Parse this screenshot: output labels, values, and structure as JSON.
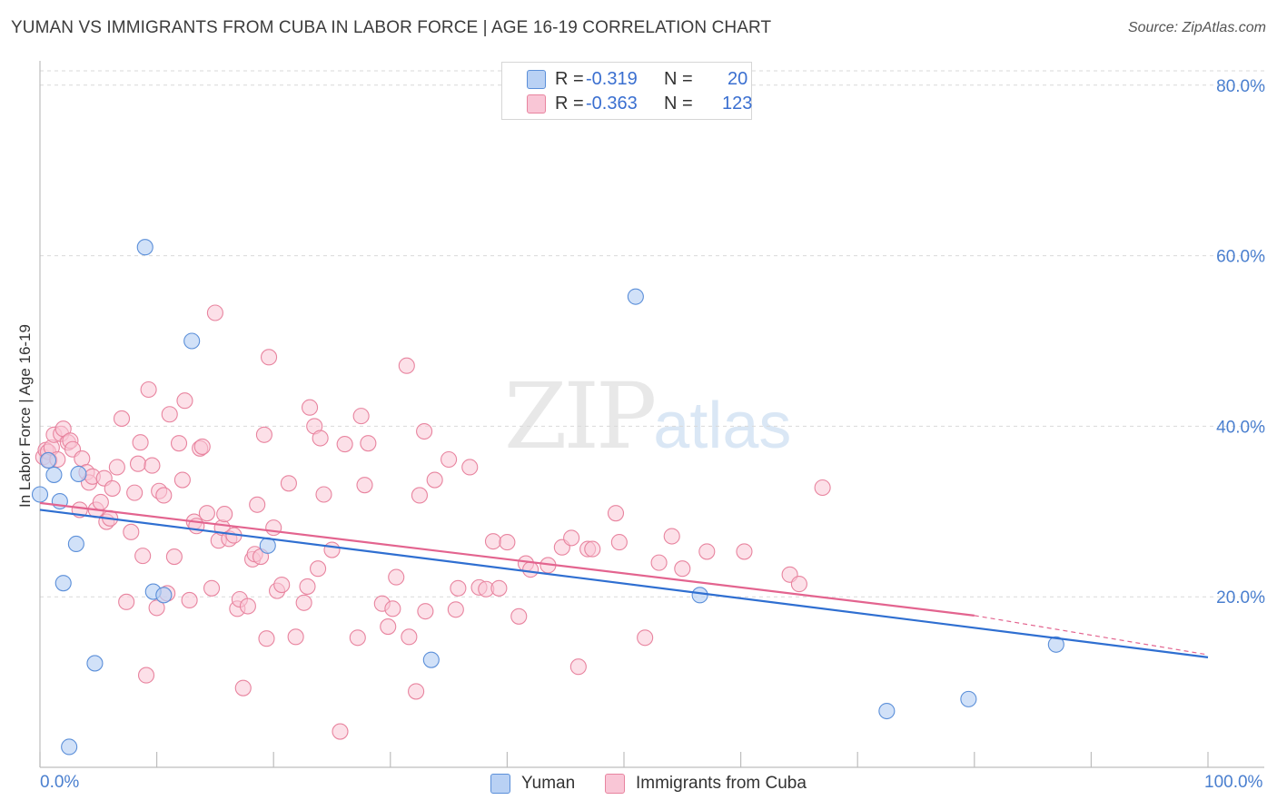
{
  "header": {
    "title": "YUMAN VS IMMIGRANTS FROM CUBA IN LABOR FORCE | AGE 16-19 CORRELATION CHART",
    "source": "Source: ZipAtlas.com"
  },
  "watermark": {
    "zip": "ZIP",
    "atlas": "atlas"
  },
  "colors": {
    "yuman_fill": "#b9d1f4",
    "yuman_stroke": "#5b8fd9",
    "yuman_line": "#2f6fd1",
    "cuba_fill": "#f9c6d6",
    "cuba_stroke": "#e8849f",
    "cuba_line": "#e3648f",
    "axis_text": "#4a7fcf",
    "grid": "#d9d9d9"
  },
  "stats": [
    {
      "series": "Yuman",
      "r_label": "R =",
      "r_value": "-0.319",
      "n_label": "N =",
      "n_value": "20"
    },
    {
      "series": "Immigrants from Cuba",
      "r_label": "R =",
      "r_value": "-0.363",
      "n_label": "N =",
      "n_value": "123"
    }
  ],
  "legend": {
    "yuman": "Yuman",
    "cuba": "Immigrants from Cuba"
  },
  "chart_data": {
    "type": "scatter",
    "title": "YUMAN VS IMMIGRANTS FROM CUBA IN LABOR FORCE | AGE 16-19 CORRELATION CHART",
    "xlabel": "",
    "ylabel": "In Labor Force | Age 16-19",
    "xlim": [
      0,
      100
    ],
    "ylim": [
      0,
      82
    ],
    "x_tick_labels": [
      "0.0%",
      "100.0%"
    ],
    "y_ticks": [
      20,
      40,
      60,
      80
    ],
    "y_tick_labels": [
      "20.0%",
      "40.0%",
      "60.0%",
      "80.0%"
    ],
    "grid": true,
    "legend_position": "bottom-center",
    "series": [
      {
        "name": "Yuman",
        "points": [
          [
            0.0,
            32.0
          ],
          [
            0.7,
            36.0
          ],
          [
            1.2,
            34.3
          ],
          [
            1.7,
            31.2
          ],
          [
            2.0,
            21.6
          ],
          [
            2.5,
            2.4
          ],
          [
            3.1,
            26.2
          ],
          [
            3.3,
            34.4
          ],
          [
            4.7,
            12.2
          ],
          [
            9.0,
            61.0
          ],
          [
            9.7,
            20.6
          ],
          [
            10.6,
            20.2
          ],
          [
            13.0,
            50.0
          ],
          [
            19.5,
            26.0
          ],
          [
            33.5,
            12.6
          ],
          [
            51.0,
            55.2
          ],
          [
            56.5,
            20.2
          ],
          [
            72.5,
            6.6
          ],
          [
            79.5,
            8.0
          ],
          [
            87.0,
            14.4
          ]
        ],
        "trend": {
          "x": [
            0,
            100
          ],
          "y": [
            30.2,
            12.9
          ]
        }
      },
      {
        "name": "Immigrants from Cuba",
        "points": [
          [
            0.3,
            36.4
          ],
          [
            0.5,
            37.2
          ],
          [
            0.7,
            37.0
          ],
          [
            0.8,
            36.0
          ],
          [
            1.0,
            37.5
          ],
          [
            1.2,
            39.0
          ],
          [
            1.5,
            36.1
          ],
          [
            1.8,
            39.1
          ],
          [
            2.0,
            39.7
          ],
          [
            2.4,
            38.1
          ],
          [
            2.6,
            38.3
          ],
          [
            2.8,
            37.3
          ],
          [
            3.4,
            30.2
          ],
          [
            3.6,
            36.2
          ],
          [
            4.0,
            34.6
          ],
          [
            4.2,
            33.4
          ],
          [
            4.5,
            34.1
          ],
          [
            4.8,
            30.2
          ],
          [
            5.2,
            31.1
          ],
          [
            5.5,
            33.9
          ],
          [
            5.7,
            28.8
          ],
          [
            6.0,
            29.2
          ],
          [
            6.2,
            32.7
          ],
          [
            6.6,
            35.2
          ],
          [
            7.0,
            40.9
          ],
          [
            7.4,
            19.4
          ],
          [
            7.8,
            27.6
          ],
          [
            8.1,
            32.2
          ],
          [
            8.4,
            35.6
          ],
          [
            8.6,
            38.1
          ],
          [
            8.8,
            24.8
          ],
          [
            9.1,
            10.8
          ],
          [
            9.3,
            44.3
          ],
          [
            9.6,
            35.4
          ],
          [
            10.0,
            18.7
          ],
          [
            10.2,
            32.4
          ],
          [
            10.6,
            31.9
          ],
          [
            10.9,
            20.4
          ],
          [
            11.1,
            41.4
          ],
          [
            11.5,
            24.7
          ],
          [
            11.9,
            38.0
          ],
          [
            12.2,
            33.7
          ],
          [
            12.4,
            43.0
          ],
          [
            12.8,
            19.6
          ],
          [
            13.2,
            28.8
          ],
          [
            13.4,
            28.3
          ],
          [
            13.7,
            37.4
          ],
          [
            13.9,
            37.6
          ],
          [
            14.3,
            29.8
          ],
          [
            14.7,
            21.0
          ],
          [
            15.0,
            53.3
          ],
          [
            15.3,
            26.6
          ],
          [
            15.6,
            28.1
          ],
          [
            15.8,
            29.7
          ],
          [
            16.2,
            26.8
          ],
          [
            16.6,
            27.2
          ],
          [
            16.9,
            18.6
          ],
          [
            17.1,
            19.7
          ],
          [
            17.4,
            9.3
          ],
          [
            17.8,
            18.9
          ],
          [
            18.2,
            24.4
          ],
          [
            18.4,
            25.0
          ],
          [
            18.6,
            30.8
          ],
          [
            18.9,
            24.7
          ],
          [
            19.2,
            39.0
          ],
          [
            19.4,
            15.1
          ],
          [
            19.6,
            48.1
          ],
          [
            20.0,
            28.1
          ],
          [
            20.3,
            20.7
          ],
          [
            20.7,
            21.4
          ],
          [
            21.3,
            33.3
          ],
          [
            21.9,
            15.3
          ],
          [
            22.6,
            19.3
          ],
          [
            22.9,
            21.2
          ],
          [
            23.1,
            42.2
          ],
          [
            23.5,
            40.0
          ],
          [
            23.8,
            23.3
          ],
          [
            24.0,
            38.6
          ],
          [
            24.3,
            32.0
          ],
          [
            25.0,
            25.5
          ],
          [
            25.7,
            4.2
          ],
          [
            26.1,
            37.9
          ],
          [
            27.2,
            15.2
          ],
          [
            27.8,
            33.1
          ],
          [
            28.1,
            38.0
          ],
          [
            27.5,
            41.2
          ],
          [
            29.3,
            19.2
          ],
          [
            29.8,
            16.5
          ],
          [
            30.2,
            18.6
          ],
          [
            30.5,
            22.3
          ],
          [
            31.4,
            47.1
          ],
          [
            31.6,
            15.3
          ],
          [
            32.2,
            8.9
          ],
          [
            32.5,
            31.9
          ],
          [
            32.9,
            39.4
          ],
          [
            33.8,
            33.7
          ],
          [
            33.0,
            18.3
          ],
          [
            35.0,
            36.1
          ],
          [
            35.6,
            18.5
          ],
          [
            35.8,
            21.0
          ],
          [
            36.8,
            35.2
          ],
          [
            37.6,
            21.1
          ],
          [
            38.2,
            20.9
          ],
          [
            38.8,
            26.5
          ],
          [
            39.3,
            21.0
          ],
          [
            40.0,
            26.4
          ],
          [
            41.0,
            17.7
          ],
          [
            41.6,
            23.9
          ],
          [
            42.0,
            23.2
          ],
          [
            43.5,
            23.7
          ],
          [
            44.7,
            25.8
          ],
          [
            45.5,
            26.9
          ],
          [
            46.1,
            11.8
          ],
          [
            46.9,
            25.6
          ],
          [
            47.3,
            25.6
          ],
          [
            49.3,
            29.8
          ],
          [
            49.6,
            26.4
          ],
          [
            51.8,
            15.2
          ],
          [
            53.0,
            24.0
          ],
          [
            54.1,
            27.1
          ],
          [
            55.0,
            23.3
          ],
          [
            57.1,
            25.3
          ],
          [
            60.3,
            25.3
          ],
          [
            64.2,
            22.6
          ],
          [
            65.0,
            21.5
          ],
          [
            67.0,
            32.8
          ]
        ],
        "trend": {
          "x": [
            0,
            80
          ],
          "y": [
            31.0,
            17.8
          ]
        },
        "trend_dashed": {
          "x": [
            80,
            100
          ],
          "y": [
            17.8,
            13.2
          ]
        }
      }
    ]
  }
}
